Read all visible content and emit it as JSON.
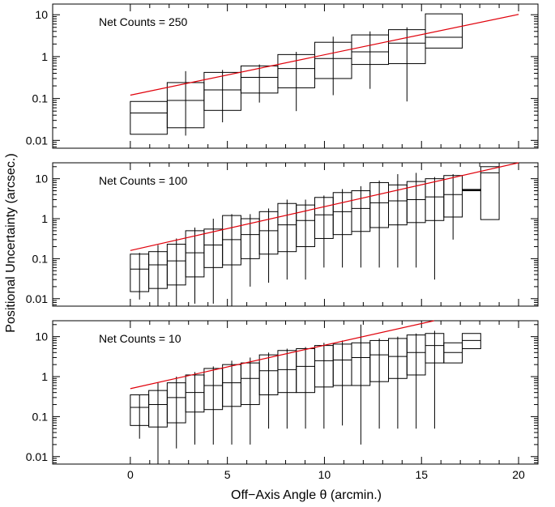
{
  "chart_data": [
    {
      "type": "box",
      "annotation": "Net Counts = 250",
      "xlim": [
        -4,
        21
      ],
      "ylim": [
        0.0065,
        18
      ],
      "yscale": "log",
      "yticks": [
        0.01,
        0.1,
        1,
        10
      ],
      "ytick_labels": [
        "0.01",
        "0.1",
        "1",
        "10"
      ],
      "fit_line": {
        "color": "#e0000a",
        "x": [
          0,
          20
        ],
        "y": [
          0.12,
          10.2
        ]
      },
      "boxes": [
        {
          "x0": 0.0,
          "x1": 1.9,
          "q1": 0.014,
          "med": 0.045,
          "q3": 0.085,
          "wlo": 0.0,
          "whi": 0.0
        },
        {
          "x0": 1.9,
          "x1": 3.8,
          "q1": 0.02,
          "med": 0.09,
          "q3": 0.24,
          "wlo": 0.013,
          "whi": 0.45
        },
        {
          "x0": 3.8,
          "x1": 5.7,
          "q1": 0.052,
          "med": 0.16,
          "q3": 0.42,
          "wlo": 0.027,
          "whi": 0.48
        },
        {
          "x0": 5.7,
          "x1": 7.6,
          "q1": 0.135,
          "med": 0.32,
          "q3": 0.6,
          "wlo": 0.08,
          "whi": 0.65
        },
        {
          "x0": 7.6,
          "x1": 9.5,
          "q1": 0.18,
          "med": 0.52,
          "q3": 1.12,
          "wlo": 0.05,
          "whi": 1.3
        },
        {
          "x0": 9.5,
          "x1": 11.4,
          "q1": 0.3,
          "med": 0.9,
          "q3": 2.2,
          "wlo": 0.12,
          "whi": 3.0
        },
        {
          "x0": 11.4,
          "x1": 13.3,
          "q1": 0.65,
          "med": 1.3,
          "q3": 3.3,
          "wlo": 0.17,
          "whi": 4.0
        },
        {
          "x0": 13.3,
          "x1": 15.2,
          "q1": 0.68,
          "med": 2.1,
          "q3": 4.4,
          "wlo": 0.085,
          "whi": 5.0
        },
        {
          "x0": 15.2,
          "x1": 17.1,
          "q1": 1.6,
          "med": 2.9,
          "q3": 10.5,
          "wlo": 0.0,
          "whi": 0.0
        }
      ]
    },
    {
      "type": "box",
      "annotation": "Net Counts = 100",
      "xlim": [
        -4,
        21
      ],
      "ylim": [
        0.0065,
        25
      ],
      "yscale": "log",
      "yticks": [
        0.01,
        0.1,
        1,
        10
      ],
      "ytick_labels": [
        "0.01",
        "0.1",
        "1",
        "10"
      ],
      "fit_line": {
        "color": "#e0000a",
        "x": [
          0,
          20
        ],
        "y": [
          0.16,
          30
        ]
      },
      "boxes": [
        {
          "x0": 0.0,
          "x1": 0.95,
          "q1": 0.015,
          "med": 0.055,
          "q3": 0.13,
          "wlo": 0.0095,
          "whi": 0.14
        },
        {
          "x0": 0.95,
          "x1": 1.9,
          "q1": 0.018,
          "med": 0.07,
          "q3": 0.15,
          "wlo": 0.0065,
          "whi": 0.22
        },
        {
          "x0": 1.9,
          "x1": 2.85,
          "q1": 0.022,
          "med": 0.088,
          "q3": 0.23,
          "wlo": 0.0065,
          "whi": 0.32
        },
        {
          "x0": 2.85,
          "x1": 3.8,
          "q1": 0.035,
          "med": 0.14,
          "q3": 0.5,
          "wlo": 0.0075,
          "whi": 0.6
        },
        {
          "x0": 3.8,
          "x1": 4.75,
          "q1": 0.06,
          "med": 0.22,
          "q3": 0.55,
          "wlo": 0.0075,
          "whi": 1.0
        },
        {
          "x0": 4.75,
          "x1": 5.7,
          "q1": 0.07,
          "med": 0.3,
          "q3": 1.2,
          "wlo": 0.0065,
          "whi": 1.3
        },
        {
          "x0": 5.7,
          "x1": 6.65,
          "q1": 0.1,
          "med": 0.4,
          "q3": 1.0,
          "wlo": 0.02,
          "whi": 1.3
        },
        {
          "x0": 6.65,
          "x1": 7.6,
          "q1": 0.13,
          "med": 0.5,
          "q3": 1.5,
          "wlo": 0.025,
          "whi": 1.8
        },
        {
          "x0": 7.6,
          "x1": 8.55,
          "q1": 0.15,
          "med": 0.7,
          "q3": 2.4,
          "wlo": 0.03,
          "whi": 3.0
        },
        {
          "x0": 8.55,
          "x1": 9.5,
          "q1": 0.2,
          "med": 0.9,
          "q3": 2.2,
          "wlo": 0.03,
          "whi": 3.0
        },
        {
          "x0": 9.5,
          "x1": 10.45,
          "q1": 0.32,
          "med": 1.25,
          "q3": 3.4,
          "wlo": 0.06,
          "whi": 3.8
        },
        {
          "x0": 10.45,
          "x1": 11.4,
          "q1": 0.4,
          "med": 1.5,
          "q3": 4.5,
          "wlo": 0.06,
          "whi": 5.5
        },
        {
          "x0": 11.4,
          "x1": 12.35,
          "q1": 0.48,
          "med": 1.8,
          "q3": 5.0,
          "wlo": 0.06,
          "whi": 6.5
        },
        {
          "x0": 12.35,
          "x1": 13.3,
          "q1": 0.6,
          "med": 2.5,
          "q3": 8.0,
          "wlo": 0.06,
          "whi": 9.0
        },
        {
          "x0": 13.3,
          "x1": 14.25,
          "q1": 0.7,
          "med": 2.8,
          "q3": 7.0,
          "wlo": 0.06,
          "whi": 13.0
        },
        {
          "x0": 14.25,
          "x1": 15.2,
          "q1": 0.8,
          "med": 3.0,
          "q3": 8.5,
          "wlo": 0.06,
          "whi": 14.0
        },
        {
          "x0": 15.2,
          "x1": 16.15,
          "q1": 0.9,
          "med": 3.5,
          "q3": 10.0,
          "wlo": 0.03,
          "whi": 11.0
        },
        {
          "x0": 16.15,
          "x1": 17.1,
          "q1": 1.1,
          "med": 4.0,
          "q3": 12.0,
          "wlo": 0.3,
          "whi": 13.0
        },
        {
          "x0": 17.1,
          "x1": 18.05,
          "q1": 5.0,
          "med": 5.2,
          "q3": 5.4,
          "wlo": 0.0,
          "whi": 0.0
        },
        {
          "x0": 18.05,
          "x1": 19.0,
          "q1": 0.95,
          "med": 14.0,
          "q3": 20.0,
          "wlo": 0.0,
          "whi": 0.0
        }
      ]
    },
    {
      "type": "box",
      "annotation": "Net Counts = 10",
      "xlim": [
        -4,
        21
      ],
      "ylim": [
        0.0065,
        25
      ],
      "yscale": "log",
      "yticks": [
        0.01,
        0.1,
        1,
        10
      ],
      "ytick_labels": [
        "0.01",
        "0.1",
        "1",
        "10"
      ],
      "xticks": [
        0,
        5,
        10,
        15,
        20
      ],
      "xtick_labels": [
        "0",
        "5",
        "10",
        "15",
        "20"
      ],
      "fit_line": {
        "color": "#e0000a",
        "x": [
          0,
          15.65
        ],
        "y": [
          0.5,
          25
        ]
      },
      "boxes": [
        {
          "x0": 0.0,
          "x1": 0.95,
          "q1": 0.06,
          "med": 0.17,
          "q3": 0.35,
          "wlo": 0.028,
          "whi": 0.35
        },
        {
          "x0": 0.95,
          "x1": 1.9,
          "q1": 0.055,
          "med": 0.2,
          "q3": 0.45,
          "wlo": 0.0065,
          "whi": 0.7
        },
        {
          "x0": 1.9,
          "x1": 2.85,
          "q1": 0.07,
          "med": 0.3,
          "q3": 0.7,
          "wlo": 0.016,
          "whi": 1.0
        },
        {
          "x0": 2.85,
          "x1": 3.8,
          "q1": 0.13,
          "med": 0.4,
          "q3": 1.1,
          "wlo": 0.02,
          "whi": 1.3
        },
        {
          "x0": 3.8,
          "x1": 4.75,
          "q1": 0.15,
          "med": 0.6,
          "q3": 1.6,
          "wlo": 0.02,
          "whi": 1.8
        },
        {
          "x0": 4.75,
          "x1": 5.7,
          "q1": 0.18,
          "med": 0.7,
          "q3": 2.0,
          "wlo": 0.02,
          "whi": 2.5
        },
        {
          "x0": 5.7,
          "x1": 6.65,
          "q1": 0.2,
          "med": 0.9,
          "q3": 2.2,
          "wlo": 0.02,
          "whi": 3.0
        },
        {
          "x0": 6.65,
          "x1": 7.6,
          "q1": 0.35,
          "med": 1.4,
          "q3": 3.5,
          "wlo": 0.05,
          "whi": 4.0
        },
        {
          "x0": 7.6,
          "x1": 8.55,
          "q1": 0.4,
          "med": 1.5,
          "q3": 4.5,
          "wlo": 0.05,
          "whi": 5.0
        },
        {
          "x0": 8.55,
          "x1": 9.5,
          "q1": 0.4,
          "med": 1.8,
          "q3": 5.0,
          "wlo": 0.05,
          "whi": 5.5
        },
        {
          "x0": 9.5,
          "x1": 10.45,
          "q1": 0.55,
          "med": 2.5,
          "q3": 6.0,
          "wlo": 0.05,
          "whi": 7.0
        },
        {
          "x0": 10.45,
          "x1": 11.4,
          "q1": 0.6,
          "med": 2.6,
          "q3": 6.5,
          "wlo": 0.06,
          "whi": 8.0
        },
        {
          "x0": 11.4,
          "x1": 12.35,
          "q1": 0.6,
          "med": 3.0,
          "q3": 7.0,
          "wlo": 0.02,
          "whi": 20.0
        },
        {
          "x0": 12.35,
          "x1": 13.3,
          "q1": 0.75,
          "med": 3.5,
          "q3": 8.0,
          "wlo": 0.05,
          "whi": 9.0
        },
        {
          "x0": 13.3,
          "x1": 14.25,
          "q1": 0.9,
          "med": 3.2,
          "q3": 9.0,
          "wlo": 0.05,
          "whi": 10.0
        },
        {
          "x0": 14.25,
          "x1": 15.2,
          "q1": 1.1,
          "med": 4.0,
          "q3": 11.0,
          "wlo": 0.05,
          "whi": 12.0
        },
        {
          "x0": 15.2,
          "x1": 16.15,
          "q1": 2.2,
          "med": 6.0,
          "q3": 12.0,
          "wlo": 0.05,
          "whi": 14.0
        },
        {
          "x0": 16.15,
          "x1": 17.1,
          "q1": 2.2,
          "med": 4.0,
          "q3": 7.0,
          "wlo": 0.0,
          "whi": 0.0
        },
        {
          "x0": 17.1,
          "x1": 18.05,
          "q1": 5.0,
          "med": 8.0,
          "q3": 12.0,
          "wlo": 0.0,
          "whi": 0.0
        }
      ]
    }
  ],
  "figure": {
    "xlabel": "Off−Axis Angle θ (arcmin.)",
    "ylabel": "Positional Uncertainty (arcsec.)"
  }
}
